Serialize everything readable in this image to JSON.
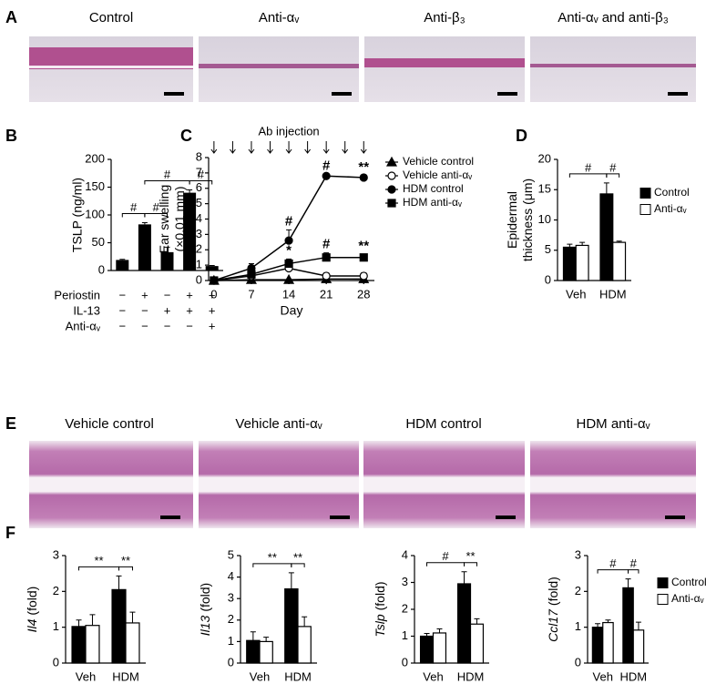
{
  "panel_labels": [
    "A",
    "B",
    "C",
    "D",
    "E",
    "F"
  ],
  "panel_a": {
    "titles": [
      "Control",
      "Anti-αᵥ",
      "Anti-β₃",
      "Anti-αᵥ and anti-β₃"
    ]
  },
  "panel_e": {
    "titles": [
      "Vehicle control",
      "Vehicle  anti-αᵥ",
      "HDM control",
      "HDM  anti-αᵥ"
    ]
  },
  "chart_data": [
    {
      "type": "bar",
      "ylabel": [
        "TSLP (ng/ml)"
      ],
      "values": [
        19,
        83,
        33,
        140,
        8
      ],
      "errors": [
        1,
        3,
        9,
        5,
        1
      ],
      "color": "#000000",
      "ylim": [
        0,
        200
      ],
      "yticks": [
        0,
        50,
        100,
        150,
        200
      ],
      "condition_table": [
        {
          "name": "Periostin",
          "marks": [
            "−",
            "+",
            "−",
            "+",
            "+"
          ]
        },
        {
          "name": "IL-13",
          "marks": [
            "−",
            "−",
            "+",
            "+",
            "+"
          ]
        },
        {
          "name": "Anti-αᵥ",
          "marks": [
            "−",
            "−",
            "−",
            "−",
            "+"
          ]
        }
      ],
      "annotations": [
        {
          "label": "#",
          "between": [
            0,
            1
          ]
        },
        {
          "label": "#",
          "between": [
            1,
            2
          ]
        },
        {
          "label": "#",
          "between": [
            1,
            3
          ]
        },
        {
          "label": "#",
          "between": [
            3,
            4
          ]
        }
      ]
    },
    {
      "type": "line",
      "injection_label": "Ab injection",
      "xlabel": "Day",
      "ylabel": [
        "Ear swelling",
        "(×0.01 mm)"
      ],
      "x": [
        0,
        7,
        14,
        21,
        28
      ],
      "xlim": [
        -1,
        30
      ],
      "xticks": [
        0,
        7,
        14,
        21,
        28
      ],
      "ylim": [
        0,
        8
      ],
      "yticks": [
        0,
        1,
        2,
        3,
        4,
        5,
        6,
        7,
        8
      ],
      "legend": "right",
      "series": [
        {
          "name": "Vehicle control",
          "color": "#000000",
          "marker": "triangle",
          "marker_fill": "#000000",
          "values": [
            0,
            0.05,
            0.05,
            0.1,
            0.1
          ],
          "errors": [
            0,
            0.05,
            0.05,
            0.05,
            0.05
          ]
        },
        {
          "name": "Vehicle anti-αᵥ",
          "color": "#000000",
          "marker": "circle",
          "marker_fill": "#ffffff",
          "values": [
            0,
            0.3,
            0.8,
            0.3,
            0.3
          ],
          "errors": [
            0,
            0.1,
            0.5,
            0.2,
            0.2
          ]
        },
        {
          "name": "HDM control",
          "color": "#000000",
          "marker": "circle",
          "marker_fill": "#000000",
          "values": [
            0,
            0.8,
            2.6,
            6.8,
            6.7
          ],
          "errors": [
            0,
            0.3,
            0.7,
            0.1,
            0.1
          ]
        },
        {
          "name": "HDM anti-αᵥ",
          "color": "#000000",
          "marker": "square",
          "marker_fill": "#000000",
          "values": [
            0,
            0.4,
            1.1,
            1.5,
            1.5
          ],
          "errors": [
            0,
            0.2,
            0.3,
            0.3,
            0.2
          ]
        }
      ],
      "annotations": [
        {
          "label": "#",
          "series": 2,
          "point": 2
        },
        {
          "label": "#",
          "series": 2,
          "point": 3
        },
        {
          "label": "**",
          "series": 2,
          "point": 4
        },
        {
          "label": "*",
          "series": 3,
          "point": 2
        },
        {
          "label": "#",
          "series": 3,
          "point": 3
        },
        {
          "label": "**",
          "series": 3,
          "point": 4
        }
      ]
    },
    {
      "type": "grouped_bar",
      "ylabel": [
        "Epidermal",
        "thickness (μm)"
      ],
      "categories": [
        "Veh",
        "HDM"
      ],
      "series": [
        {
          "name": "Control",
          "color": "#000000",
          "values": [
            5.5,
            14.3
          ],
          "errors": [
            0.5,
            1.8
          ]
        },
        {
          "name": "Anti-αᵥ",
          "color": "#ffffff",
          "values": [
            5.8,
            6.3
          ],
          "errors": [
            0.5,
            0.2
          ]
        }
      ],
      "ylim": [
        0,
        20
      ],
      "yticks": [
        0,
        5,
        10,
        15,
        20
      ],
      "legend": "right",
      "annotations": [
        {
          "label": "#",
          "between": [
            [
              0,
              0
            ],
            [
              0,
              1
            ]
          ]
        },
        {
          "label": "#",
          "between": [
            [
              0,
              1
            ],
            [
              1,
              1
            ]
          ]
        }
      ]
    },
    {
      "type": "grouped_bar",
      "ylabel": [
        "Il4",
        "(fold)"
      ],
      "ylabel_italic_first": true,
      "categories": [
        "Veh",
        "HDM"
      ],
      "series": [
        {
          "name": "Control",
          "color": "#000000",
          "values": [
            1.02,
            2.05
          ],
          "errors": [
            0.18,
            0.38
          ]
        },
        {
          "name": "Anti-αᵥ",
          "color": "#ffffff",
          "values": [
            1.05,
            1.12
          ],
          "errors": [
            0.3,
            0.3
          ]
        }
      ],
      "ylim": [
        0,
        3
      ],
      "yticks": [
        0,
        1,
        2,
        3
      ],
      "annotations": [
        {
          "label": "**",
          "between": [
            [
              0,
              0
            ],
            [
              0,
              1
            ]
          ]
        },
        {
          "label": "**",
          "between": [
            [
              0,
              1
            ],
            [
              1,
              1
            ]
          ]
        }
      ]
    },
    {
      "type": "grouped_bar",
      "ylabel": [
        "Il13",
        "(fold)"
      ],
      "ylabel_italic_first": true,
      "categories": [
        "Veh",
        "HDM"
      ],
      "series": [
        {
          "name": "Control",
          "color": "#000000",
          "values": [
            1.05,
            3.45
          ],
          "errors": [
            0.4,
            0.75
          ]
        },
        {
          "name": "Anti-αᵥ",
          "color": "#ffffff",
          "values": [
            1.0,
            1.7
          ],
          "errors": [
            0.2,
            0.45
          ]
        }
      ],
      "ylim": [
        0,
        5
      ],
      "yticks": [
        0,
        1,
        2,
        3,
        4,
        5
      ],
      "annotations": [
        {
          "label": "**",
          "between": [
            [
              0,
              0
            ],
            [
              0,
              1
            ]
          ]
        },
        {
          "label": "**",
          "between": [
            [
              0,
              1
            ],
            [
              1,
              1
            ]
          ]
        }
      ]
    },
    {
      "type": "grouped_bar",
      "ylabel": [
        "Tslp",
        "(fold)"
      ],
      "ylabel_italic_first": true,
      "categories": [
        "Veh",
        "HDM"
      ],
      "series": [
        {
          "name": "Control",
          "color": "#000000",
          "values": [
            1.0,
            2.95
          ],
          "errors": [
            0.1,
            0.45
          ]
        },
        {
          "name": "Anti-αᵥ",
          "color": "#ffffff",
          "values": [
            1.12,
            1.45
          ],
          "errors": [
            0.15,
            0.2
          ]
        }
      ],
      "ylim": [
        0,
        4
      ],
      "yticks": [
        0,
        1,
        2,
        3,
        4
      ],
      "annotations": [
        {
          "label": "#",
          "between": [
            [
              0,
              0
            ],
            [
              0,
              1
            ]
          ]
        },
        {
          "label": "**",
          "between": [
            [
              0,
              1
            ],
            [
              1,
              1
            ]
          ]
        }
      ]
    },
    {
      "type": "grouped_bar",
      "ylabel": [
        "Ccl17",
        "(fold)"
      ],
      "ylabel_italic_first": true,
      "categories": [
        "Veh",
        "HDM"
      ],
      "series": [
        {
          "name": "Control",
          "color": "#000000",
          "values": [
            1.0,
            2.1
          ],
          "errors": [
            0.1,
            0.25
          ]
        },
        {
          "name": "Anti-αᵥ",
          "color": "#ffffff",
          "values": [
            1.13,
            0.92
          ],
          "errors": [
            0.07,
            0.22
          ]
        }
      ],
      "ylim": [
        0,
        3
      ],
      "yticks": [
        0,
        1,
        2,
        3
      ],
      "legend": "right",
      "annotations": [
        {
          "label": "#",
          "between": [
            [
              0,
              0
            ],
            [
              0,
              1
            ]
          ]
        },
        {
          "label": "#",
          "between": [
            [
              0,
              1
            ],
            [
              1,
              1
            ]
          ]
        }
      ]
    }
  ]
}
